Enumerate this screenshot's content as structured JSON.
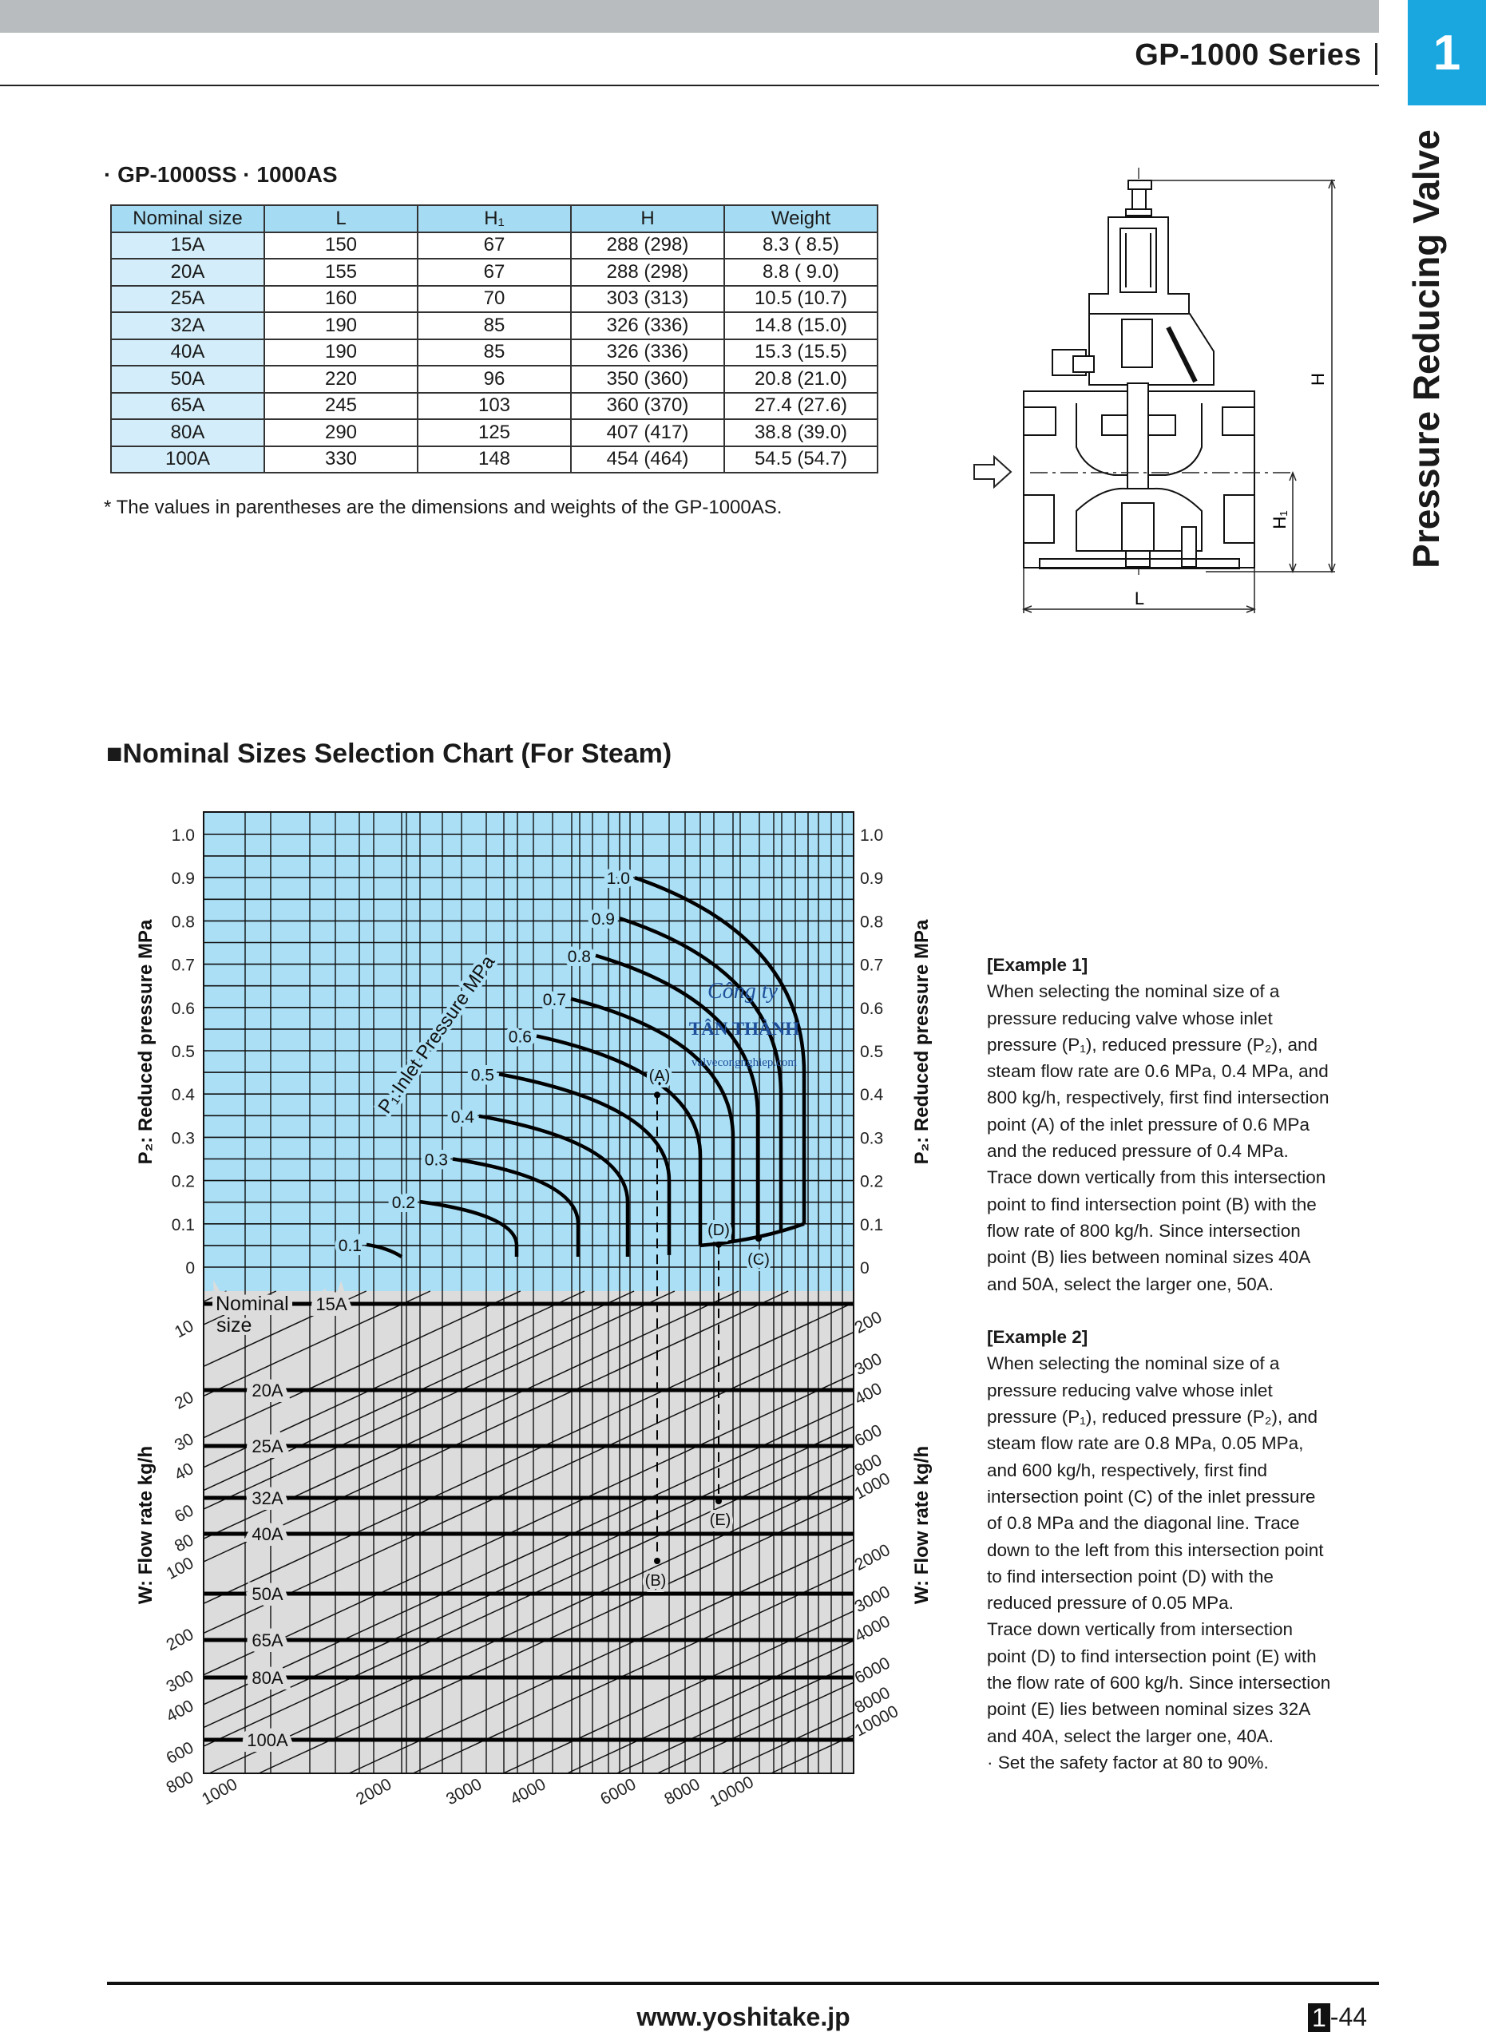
{
  "header": {
    "series_title": "GP-1000 Series",
    "chapter_number": "1",
    "side_title": "Pressure Reducing Valve",
    "tab_color": "#1aa7e0"
  },
  "dimensions": {
    "subtitle": "· GP-1000SS · 1000AS",
    "columns": [
      "Nominal size",
      "L",
      "H₁",
      "H",
      "Weight"
    ],
    "rows": [
      [
        "15A",
        "150",
        "67",
        "288 (298)",
        "8.3 ( 8.5)"
      ],
      [
        "20A",
        "155",
        "67",
        "288 (298)",
        "8.8 ( 9.0)"
      ],
      [
        "25A",
        "160",
        "70",
        "303 (313)",
        "10.5 (10.7)"
      ],
      [
        "32A",
        "190",
        "85",
        "326 (336)",
        "14.8 (15.0)"
      ],
      [
        "40A",
        "190",
        "85",
        "326 (336)",
        "15.3 (15.5)"
      ],
      [
        "50A",
        "220",
        "96",
        "350 (360)",
        "20.8 (21.0)"
      ],
      [
        "65A",
        "245",
        "103",
        "360 (370)",
        "27.4 (27.6)"
      ],
      [
        "80A",
        "290",
        "125",
        "407 (417)",
        "38.8 (39.0)"
      ],
      [
        "100A",
        "330",
        "148",
        "454 (464)",
        "54.5 (54.7)"
      ]
    ],
    "note": "* The values in parentheses are the dimensions and weights of the GP-1000AS."
  },
  "drawing": {
    "dim_H": "H",
    "dim_H1": "H₁",
    "dim_L": "L",
    "inlet_icon": "arrow-right-icon"
  },
  "chart_section_title": "■Nominal Sizes Selection Chart (For Steam)",
  "chart_data": {
    "type": "nomograph",
    "colors": {
      "upper_bg": "#aadff5",
      "lower_bg": "#dcdcdc"
    },
    "upper": {
      "ylabel": "P₂: Reduced pressure MPa",
      "ylim": [
        0,
        1.0
      ],
      "y_ticks": [
        "1.0",
        "0.9",
        "0.8",
        "0.7",
        "0.6",
        "0.5",
        "0.4",
        "0.3",
        "0.2",
        "0.1",
        "0"
      ],
      "grid": true,
      "curve_family_label": "P₁:Inlet Pressure MPa",
      "curves": [
        {
          "p1": "0.1",
          "p2_start": 0.052,
          "p2_knee": null,
          "p2_end": 0.024
        },
        {
          "p1": "0.2",
          "p2_start": 0.151,
          "p2_knee": 0.05,
          "p2_end": 0.024
        },
        {
          "p1": "0.3",
          "p2_start": 0.25,
          "p2_knee": 0.1,
          "p2_end": 0.024
        },
        {
          "p1": "0.4",
          "p2_start": 0.349,
          "p2_knee": 0.15,
          "p2_end": 0.024
        },
        {
          "p1": "0.5",
          "p2_start": 0.446,
          "p2_knee": 0.2,
          "p2_end": 0.028
        },
        {
          "p1": "0.6",
          "p2_start": 0.534,
          "p2_knee": 0.257,
          "p2_end": 0.05
        },
        {
          "p1": "0.7",
          "p2_start": 0.62,
          "p2_knee": 0.299,
          "p2_end": 0.058
        },
        {
          "p1": "0.8",
          "p2_start": 0.72,
          "p2_knee": 0.349,
          "p2_end": 0.068
        },
        {
          "p1": "0.9",
          "p2_start": 0.806,
          "p2_knee": 0.4,
          "p2_end": 0.081
        },
        {
          "p1": "1.0",
          "p2_start": 0.9,
          "p2_knee": 0.448,
          "p2_end": 0.1
        }
      ],
      "envelope": {
        "p2_start": 0.05,
        "p2_end": 0.1
      }
    },
    "lower": {
      "ylabel": "W: Flow rate kg/h",
      "flow_ticks_left": [
        "10",
        "20",
        "30",
        "40",
        "60",
        "80",
        "100",
        "200",
        "300",
        "400",
        "600",
        "800"
      ],
      "flow_ticks_right": [
        "200",
        "300",
        "400",
        "600",
        "800",
        "1000",
        "2000",
        "3000",
        "4000",
        "6000",
        "8000",
        "10000"
      ],
      "flow_ticks_bottom": [
        "1000",
        "2000",
        "3000",
        "4000",
        "6000",
        "8000",
        "10000"
      ],
      "nominal_label": [
        "Nominal",
        "size"
      ],
      "nominal_sizes": [
        "15A",
        "20A",
        "25A",
        "32A",
        "40A",
        "50A",
        "65A",
        "80A",
        "100A"
      ]
    },
    "points": [
      {
        "label": "(A)",
        "p1": 0.6,
        "p2": 0.4
      },
      {
        "label": "(B)",
        "flow": 800
      },
      {
        "label": "(C)",
        "p1": 0.8
      },
      {
        "label": "(D)",
        "p2": 0.05
      },
      {
        "label": "(E)",
        "flow": 600
      }
    ]
  },
  "watermark": {
    "line1": "Công ty",
    "line2": "TÂN THÀNH",
    "line3": "valvecongnghiep.com",
    "color": "#1f4f9a"
  },
  "examples": [
    {
      "title": "[Example 1]",
      "lines": [
        "When selecting the nominal size of a",
        "pressure reducing valve whose inlet",
        "pressure (P₁), reduced pressure (P₂), and",
        "steam flow rate are 0.6 MPa, 0.4 MPa, and",
        "800 kg/h, respectively, first find intersection",
        "point (A) of the inlet pressure of 0.6 MPa",
        "and the reduced pressure of 0.4 MPa.",
        "Trace down vertically from this intersection",
        "point to find intersection point (B) with the",
        "flow rate of 800 kg/h. Since intersection",
        "point (B) lies between nominal sizes 40A",
        "and 50A, select the larger one, 50A."
      ]
    },
    {
      "title": "[Example 2]",
      "lines": [
        "When selecting the nominal size of a",
        "pressure reducing valve whose inlet",
        "pressure (P₁), reduced pressure (P₂), and",
        "steam flow rate are 0.8 MPa, 0.05 MPa,",
        "and 600 kg/h, respectively, first find",
        "intersection point (C) of the inlet pressure",
        "of 0.8 MPa and the diagonal line. Trace",
        "down to the left from this intersection point",
        "to find intersection point (D) with the",
        "reduced pressure of 0.05 MPa.",
        "Trace down vertically from intersection",
        "point (D) to find intersection point (E) with",
        "the flow rate of 600 kg/h. Since intersection",
        "point (E) lies between nominal sizes 32A",
        "and 40A, select the larger one, 40A.",
        "· Set the safety factor at 80 to 90%."
      ]
    }
  ],
  "footer": {
    "url": "www.yoshitake.jp",
    "page_chapter": "1",
    "page_number": "-44"
  }
}
